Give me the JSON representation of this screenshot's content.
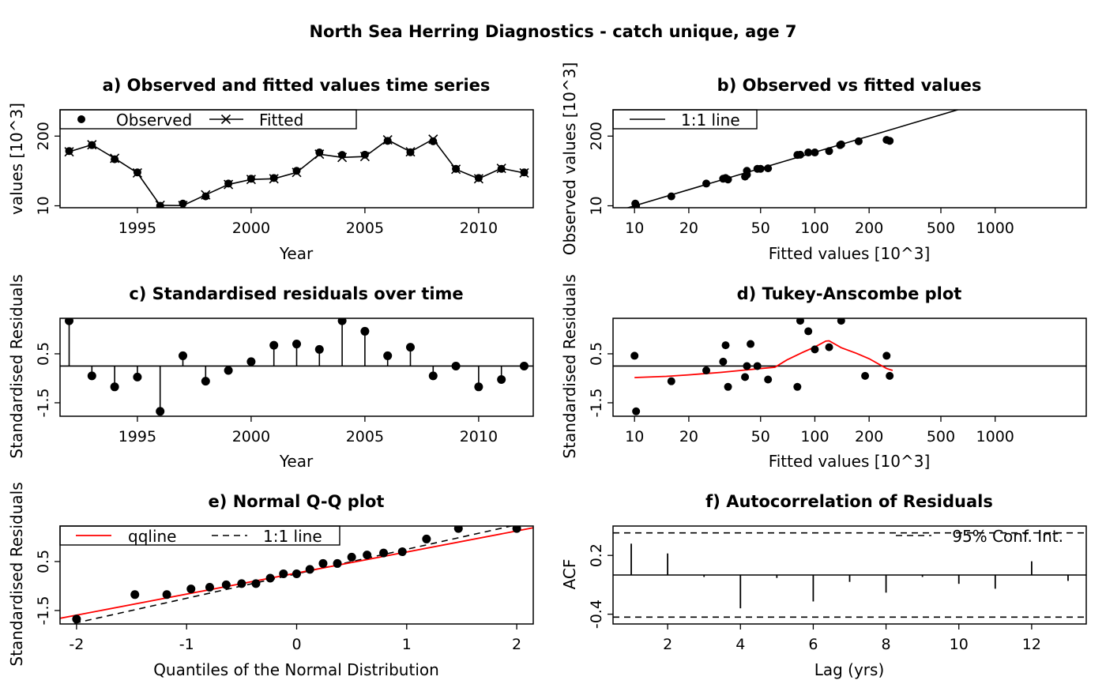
{
  "figure": {
    "title": "North Sea Herring Diagnostics - catch unique, age 7"
  },
  "colors": {
    "ink": "#000000",
    "red": "#ff0000",
    "bg": "#ffffff"
  },
  "chart_data": [
    {
      "id": "a",
      "type": "line",
      "title": "a) Observed and fitted values time series",
      "xlabel": "Year",
      "ylabel": "values [10^3]",
      "y_scale": "log",
      "xlim": [
        1991.6,
        2012.4
      ],
      "ylim": [
        9.2,
        620
      ],
      "x_ticks": [
        1995,
        2000,
        2005,
        2010
      ],
      "y_ticks": [
        {
          "v": 10,
          "label": "10"
        },
        {
          "v": 200,
          "label": "200"
        }
      ],
      "legend": {
        "position": "top-left",
        "entries": [
          "Observed",
          "Fitted"
        ]
      },
      "x": [
        1992,
        1993,
        1994,
        1995,
        1996,
        1997,
        1998,
        1999,
        2000,
        2001,
        2002,
        2003,
        2004,
        2005,
        2006,
        2007,
        2008,
        2009,
        2010,
        2011,
        2012
      ],
      "series": [
        {
          "name": "Observed",
          "values": [
            105,
            136,
            74,
            42,
            10,
            11,
            15,
            26,
            32,
            33,
            45,
            99,
            89,
            90,
            163,
            100,
            160,
            49,
            33,
            49,
            42
          ]
        },
        {
          "name": "Fitted",
          "values": [
            102,
            138,
            77,
            41,
            10.2,
            10.1,
            16,
            25,
            31,
            32,
            42,
            92,
            80,
            83,
            170,
            102,
            175,
            48,
            32,
            50,
            41
          ]
        }
      ]
    },
    {
      "id": "b",
      "type": "scatter",
      "title": "b) Observed vs fitted values",
      "xlabel": "Fitted values [10^3]",
      "ylabel": "Observed values [10^3]",
      "x_scale": "log",
      "y_scale": "log",
      "xlim": [
        7.6,
        3200
      ],
      "ylim": [
        9.2,
        620
      ],
      "x_ticks": [
        10,
        20,
        50,
        100,
        200,
        500,
        1000
      ],
      "y_ticks": [
        {
          "v": 10,
          "label": "10"
        },
        {
          "v": 200,
          "label": "200"
        }
      ],
      "legend": {
        "position": "top-left",
        "entries": [
          "1:1 line"
        ]
      },
      "points": [
        [
          10.1,
          11
        ],
        [
          10.2,
          10
        ],
        [
          16,
          15
        ],
        [
          25,
          26
        ],
        [
          31,
          32
        ],
        [
          32,
          33
        ],
        [
          33,
          31
        ],
        [
          41,
          35
        ],
        [
          42,
          38
        ],
        [
          42,
          45
        ],
        [
          48,
          49
        ],
        [
          50,
          49
        ],
        [
          55,
          50
        ],
        [
          80,
          89
        ],
        [
          83,
          90
        ],
        [
          92,
          99
        ],
        [
          100,
          99
        ],
        [
          120,
          105
        ],
        [
          138,
          136
        ],
        [
          140,
          140
        ],
        [
          175,
          160
        ],
        [
          250,
          170
        ],
        [
          260,
          163
        ]
      ]
    },
    {
      "id": "c",
      "type": "scatter",
      "title": "c) Standardised residuals over time",
      "xlabel": "Year",
      "ylabel": "Standardised Residuals",
      "xlim": [
        1991.6,
        2012.4
      ],
      "ylim": [
        -2.05,
        1.95
      ],
      "x_ticks": [
        1995,
        2000,
        2005,
        2010
      ],
      "y_ticks": [
        {
          "v": -1.5,
          "label": "-1.5"
        },
        {
          "v": 0.5,
          "label": "0.5"
        }
      ],
      "x": [
        1992,
        1993,
        1994,
        1995,
        1996,
        1997,
        1998,
        1999,
        2000,
        2001,
        2002,
        2003,
        2004,
        2005,
        2006,
        2007,
        2008,
        2009,
        2010,
        2011,
        2012
      ],
      "values": [
        1.85,
        -0.4,
        -0.85,
        -0.45,
        -1.85,
        0.42,
        -0.62,
        -0.18,
        0.18,
        0.85,
        0.9,
        0.68,
        1.85,
        1.42,
        0.42,
        0.77,
        -0.4,
        0,
        -0.85,
        -0.55,
        0
      ]
    },
    {
      "id": "d",
      "type": "scatter",
      "title": "d) Tukey-Anscombe plot",
      "xlabel": "Fitted values [10^3]",
      "ylabel": "Standardised Residuals",
      "x_scale": "log",
      "xlim": [
        7.6,
        3200
      ],
      "ylim": [
        -2.05,
        1.95
      ],
      "x_ticks": [
        10,
        20,
        50,
        100,
        200,
        500,
        1000
      ],
      "y_ticks": [
        {
          "v": -1.5,
          "label": "-1.5"
        },
        {
          "v": 0.5,
          "label": "0.5"
        }
      ],
      "points": [
        [
          10,
          0.42
        ],
        [
          10.2,
          -1.85
        ],
        [
          16,
          -0.62
        ],
        [
          25,
          -0.18
        ],
        [
          31,
          0.18
        ],
        [
          32,
          0.85
        ],
        [
          33,
          -0.85
        ],
        [
          41,
          -0.45
        ],
        [
          42,
          0
        ],
        [
          44,
          0.9
        ],
        [
          48,
          0
        ],
        [
          55,
          -0.55
        ],
        [
          80,
          -0.85
        ],
        [
          83,
          1.85
        ],
        [
          92,
          1.42
        ],
        [
          100,
          0.68
        ],
        [
          120,
          0.77
        ],
        [
          140,
          1.85
        ],
        [
          190,
          -0.4
        ],
        [
          250,
          0.42
        ],
        [
          260,
          -0.4
        ]
      ],
      "smoother": [
        [
          10,
          -0.47
        ],
        [
          15,
          -0.42
        ],
        [
          20,
          -0.36
        ],
        [
          30,
          -0.26
        ],
        [
          40,
          -0.17
        ],
        [
          50,
          -0.1
        ],
        [
          60,
          -0.05
        ],
        [
          70,
          0.25
        ],
        [
          85,
          0.55
        ],
        [
          100,
          0.78
        ],
        [
          115,
          1.02
        ],
        [
          120,
          1.03
        ],
        [
          140,
          0.75
        ],
        [
          170,
          0.52
        ],
        [
          200,
          0.3
        ],
        [
          250,
          -0.1
        ],
        [
          270,
          -0.18
        ]
      ]
    },
    {
      "id": "e",
      "type": "scatter",
      "title": "e) Normal Q-Q plot",
      "xlabel": "Quantiles of the Normal Distribution",
      "ylabel": "Standardised Residuals",
      "xlim": [
        -2.15,
        2.15
      ],
      "ylim": [
        -2.05,
        1.95
      ],
      "x_ticks": [
        -2,
        -1,
        0,
        1,
        2
      ],
      "y_ticks": [
        {
          "v": -1.5,
          "label": "-1.5"
        },
        {
          "v": 0.5,
          "label": "0.5"
        }
      ],
      "legend": {
        "position": "top-left",
        "entries": [
          "qqline",
          "1:1 line"
        ]
      },
      "points": [
        [
          -2,
          -1.85
        ],
        [
          -1.47,
          -0.85
        ],
        [
          -1.18,
          -0.85
        ],
        [
          -0.96,
          -0.62
        ],
        [
          -0.79,
          -0.55
        ],
        [
          -0.64,
          -0.45
        ],
        [
          -0.5,
          -0.4
        ],
        [
          -0.37,
          -0.4
        ],
        [
          -0.24,
          -0.18
        ],
        [
          -0.12,
          0
        ],
        [
          0,
          0
        ],
        [
          0.12,
          0.18
        ],
        [
          0.24,
          0.42
        ],
        [
          0.37,
          0.42
        ],
        [
          0.5,
          0.68
        ],
        [
          0.64,
          0.77
        ],
        [
          0.79,
          0.85
        ],
        [
          0.96,
          0.9
        ],
        [
          1.18,
          1.42
        ],
        [
          1.47,
          1.85
        ],
        [
          2,
          1.85
        ]
      ],
      "qqline": {
        "slope": 0.86,
        "intercept": 0.03
      }
    },
    {
      "id": "f",
      "type": "bar",
      "title": "f) Autocorrelation of Residuals",
      "xlabel": "Lag (yrs)",
      "ylabel": "ACF",
      "xlim": [
        0.5,
        13.5
      ],
      "ylim": [
        -0.5,
        0.5
      ],
      "x_ticks": [
        2,
        4,
        6,
        8,
        10,
        12
      ],
      "y_ticks": [
        {
          "v": -0.4,
          "label": "-0.4"
        },
        {
          "v": 0.2,
          "label": "0.2"
        }
      ],
      "legend": {
        "position": "top-right",
        "entries": [
          "95% Conf. Int."
        ]
      },
      "conf_int": 0.43,
      "lags": [
        1,
        2,
        3,
        4,
        5,
        6,
        7,
        8,
        9,
        10,
        11,
        12,
        13
      ],
      "acf": [
        0.32,
        0.22,
        -0.02,
        -0.34,
        -0.03,
        -0.27,
        -0.07,
        -0.18,
        -0.02,
        -0.09,
        -0.14,
        0.14,
        -0.06
      ]
    }
  ]
}
